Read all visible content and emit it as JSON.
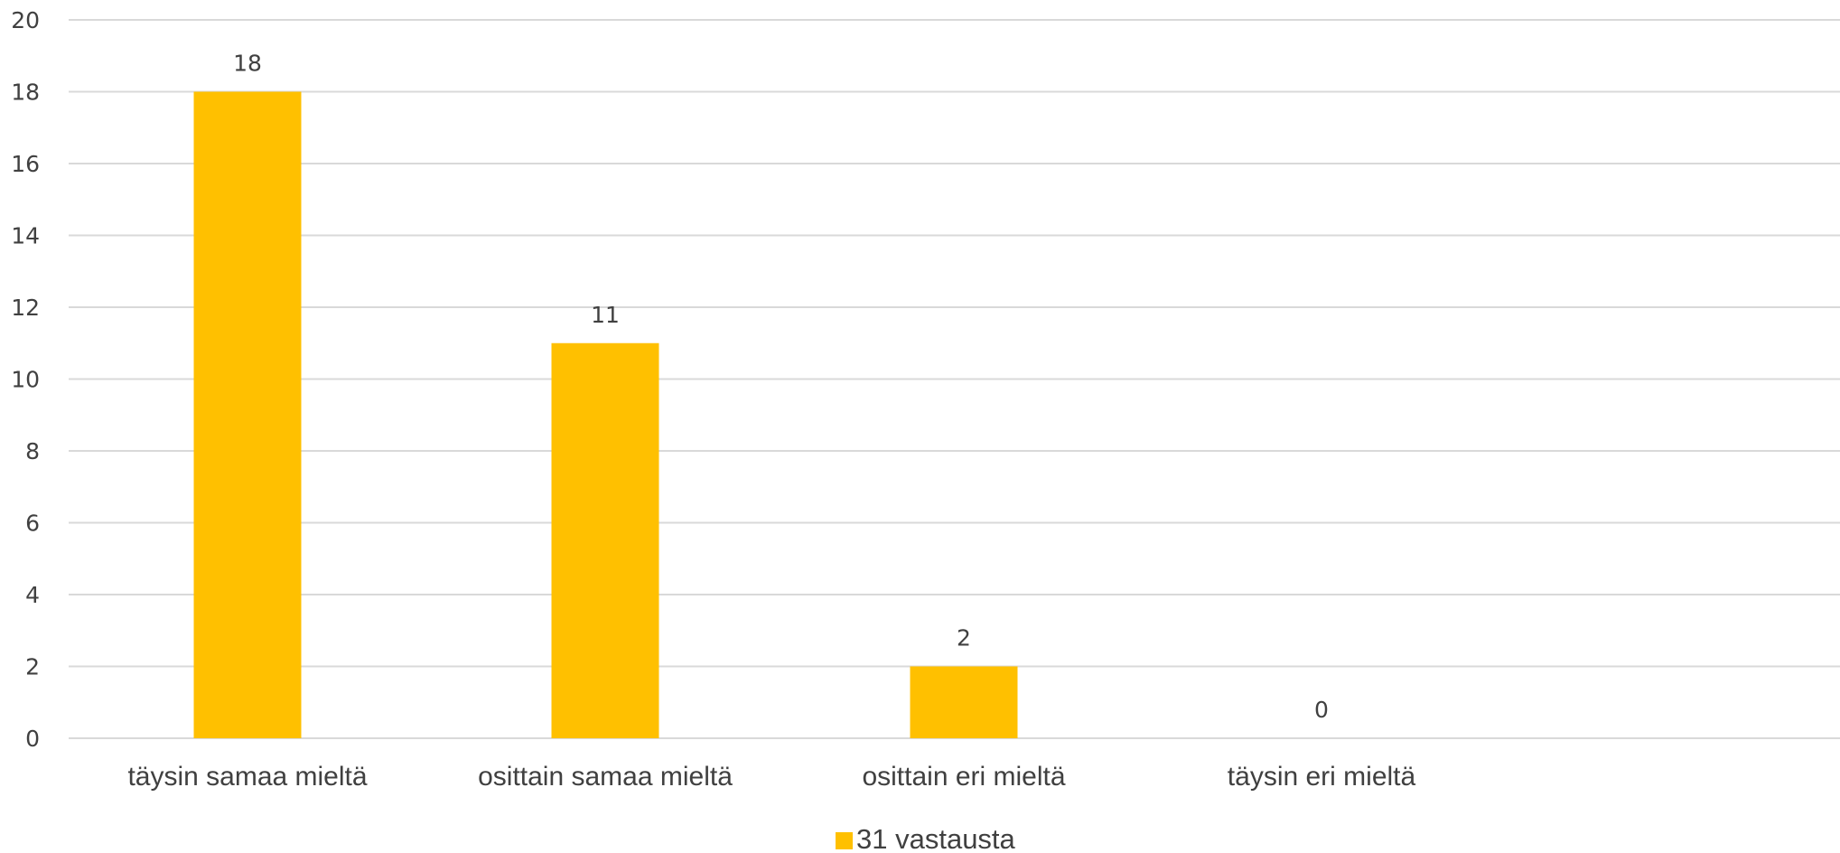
{
  "chart_data": {
    "type": "bar",
    "categories": [
      "täysin samaa mieltä",
      "osittain samaa mieltä",
      "osittain eri mieltä",
      "täysin eri mieltä"
    ],
    "series": [
      {
        "name": "31 vastausta",
        "values": [
          18,
          11,
          2,
          0
        ],
        "color": "#FFC000"
      }
    ],
    "data_labels": [
      "18",
      "11",
      "2",
      "0"
    ],
    "y_ticks": [
      "0",
      "2",
      "4",
      "6",
      "8",
      "10",
      "12",
      "14",
      "16",
      "18",
      "20"
    ],
    "ylim": [
      0,
      20
    ],
    "title": "",
    "xlabel": "",
    "ylabel": "",
    "grid": true,
    "legend": "bottom-center",
    "colors": {
      "bar": "#FFC000",
      "grid": "#D9D9D9",
      "text": "#404040"
    }
  }
}
